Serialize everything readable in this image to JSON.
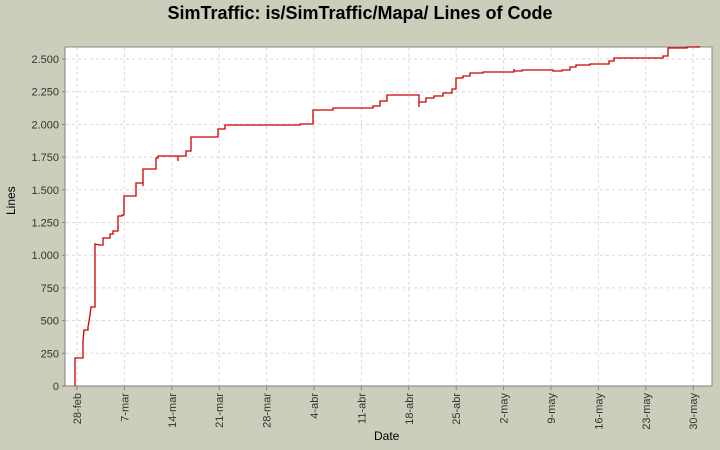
{
  "chart_data": {
    "type": "line",
    "title": "SimTraffic: is/SimTraffic/Mapa/ Lines of Code",
    "xlabel": "Date",
    "ylabel": "Lines",
    "ylim": [
      0,
      2700
    ],
    "grid": true,
    "legend": null,
    "line_color": "#cc0000",
    "y_ticks": [
      "0",
      "250",
      "500",
      "750",
      "1.000",
      "1.250",
      "1.500",
      "1.750",
      "2.000",
      "2.250",
      "2.500"
    ],
    "y_tick_values": [
      0,
      250,
      500,
      750,
      1000,
      1250,
      1500,
      1750,
      2000,
      2250,
      2500
    ],
    "x_ticks": [
      "28-feb",
      "7-mar",
      "14-mar",
      "21-mar",
      "28-mar",
      "4-abr",
      "11-abr",
      "18-abr",
      "25-abr",
      "2-may",
      "9-may",
      "16-may",
      "23-may",
      "30-may"
    ],
    "series": [
      {
        "name": "Lines of Code",
        "step": true,
        "points": [
          [
            "28-feb",
            0
          ],
          [
            "28-feb",
            215
          ],
          [
            "29-feb",
            345
          ],
          [
            "1-mar",
            430
          ],
          [
            "2-mar",
            450
          ],
          [
            "2-mar",
            540
          ],
          [
            "3-mar",
            605
          ],
          [
            "3-mar",
            1085
          ],
          [
            "4-mar",
            1075
          ],
          [
            "4-mar",
            1130
          ],
          [
            "5-mar",
            1160
          ],
          [
            "6-mar",
            1185
          ],
          [
            "6-mar",
            1300
          ],
          [
            "7-mar",
            1455
          ],
          [
            "9-mar",
            1550
          ],
          [
            "10-mar",
            1660
          ],
          [
            "12-mar",
            1740
          ],
          [
            "12-mar",
            1760
          ],
          [
            "15-mar",
            1720
          ],
          [
            "15-mar",
            1760
          ],
          [
            "16-mar",
            1800
          ],
          [
            "17-mar",
            1900
          ],
          [
            "21-mar",
            1970
          ],
          [
            "22-mar",
            1990
          ],
          [
            "3-abr",
            2000
          ],
          [
            "4-abr",
            2110
          ],
          [
            "7-abr",
            2125
          ],
          [
            "13-abr",
            2140
          ],
          [
            "14-abr",
            2175
          ],
          [
            "15-abr",
            2220
          ],
          [
            "20-abr",
            2130
          ],
          [
            "20-abr",
            2170
          ],
          [
            "21-abr",
            2200
          ],
          [
            "22-abr",
            2215
          ],
          [
            "23-abr",
            2235
          ],
          [
            "24-abr",
            2270
          ],
          [
            "25-abr",
            2350
          ],
          [
            "26-abr",
            2370
          ],
          [
            "27-abr",
            2390
          ],
          [
            "29-abr",
            2400
          ],
          [
            "3-may",
            2420
          ],
          [
            "4-may",
            2420
          ],
          [
            "9-may",
            2410
          ],
          [
            "10-may",
            2420
          ],
          [
            "12-may",
            2440
          ],
          [
            "13-may",
            2450
          ],
          [
            "15-may",
            2455
          ],
          [
            "17-may",
            2480
          ],
          [
            "18-may",
            2500
          ],
          [
            "25-may",
            2520
          ],
          [
            "26-may",
            2580
          ],
          [
            "29-may",
            2590
          ],
          [
            "31-may",
            2590
          ]
        ]
      }
    ]
  },
  "plot_pixels": "75,386 75,358 83,358 83,341 84,330 88,330 88,327 90,315 91,307 95,307 95,244 99,245 103,245 103,238 110,238 110,234 113,234 113,231 118,231 118,216 122,216 122,215 124,215 124,196 136,196 136,183 143,183 143,186 143,169 156,169 156,158 158,158 158,156 178,156 178,161 178,156 186,156 186,151 191,151 191,137 218,137 218,129 225,129 225,125 300,125 300,124 313,124 313,110 333,110 333,108 373,108 373,106 380,106 380,101 387,101 387,95 419,95 419,107 419,102 426,102 426,98 434,98 434,96 443,96 443,93 452,93 452,89 456,89 456,78 463,78 463,76 470,76 470,73 483,73 483,72 514,72 514,69 514,71 522,71 522,70 553,70 553,71 562,71 562,70 570,70 570,67 576,67 576,65 590,65 590,64 609,64 609,61 614,61 614,58 663,58 663,56 668,56 668,48 687,48 687,47 699,47 699,46"
}
